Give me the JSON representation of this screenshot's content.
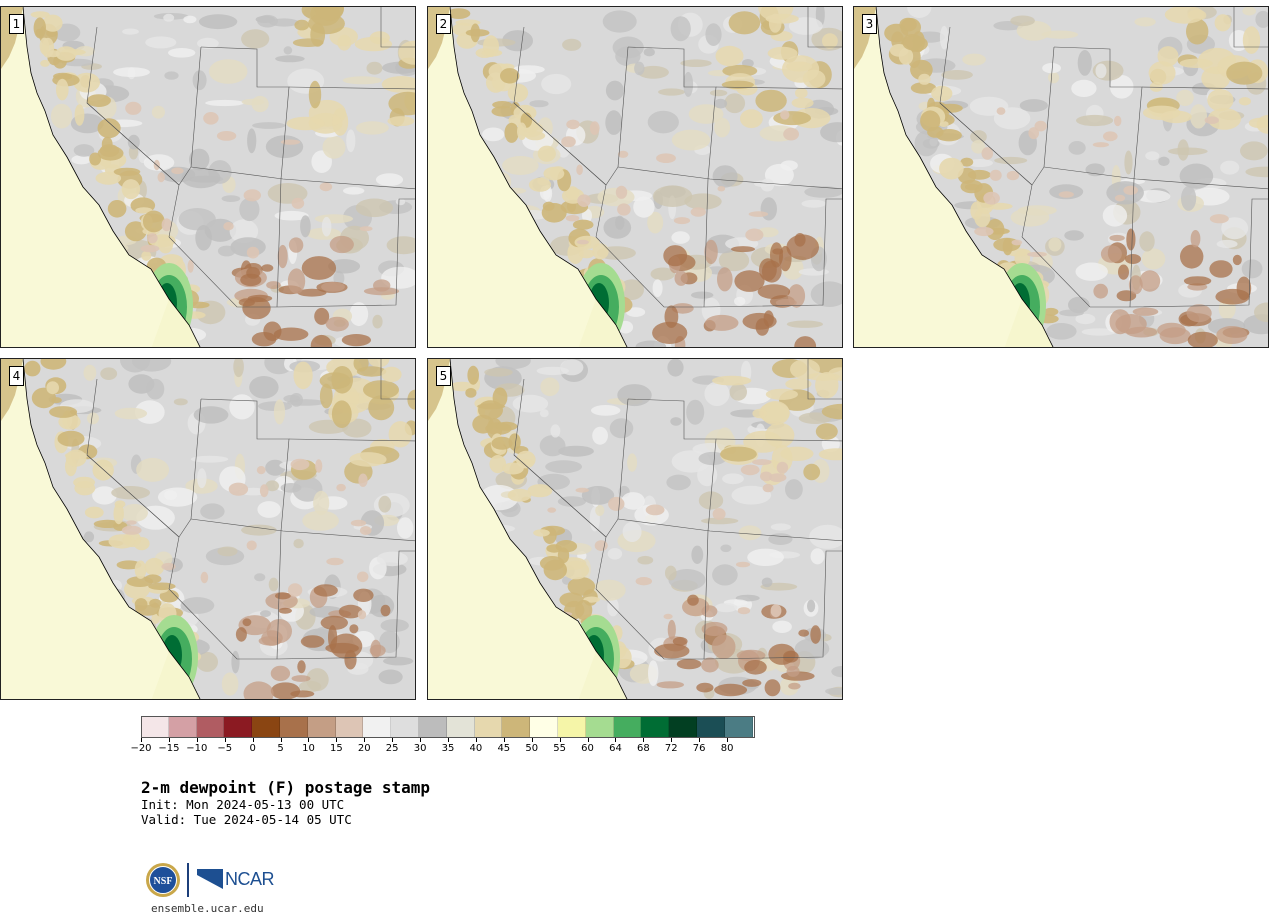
{
  "panels": [
    {
      "label": "1"
    },
    {
      "label": "2"
    },
    {
      "label": "3"
    },
    {
      "label": "4"
    },
    {
      "label": "5"
    }
  ],
  "colorbar": {
    "colors": [
      "#f4e6e8",
      "#d4a0a5",
      "#b05c62",
      "#8b1a22",
      "#8a4512",
      "#a8714b",
      "#c49e85",
      "#ddc5b5",
      "#f1f1f1",
      "#dedede",
      "#bcbcbc",
      "#e3e3d7",
      "#e6d8ae",
      "#cdb679",
      "#ffffe6",
      "#f5f5a8",
      "#a5dc91",
      "#45ad5f",
      "#006d34",
      "#023f22",
      "#1b4e55",
      "#4b7c84"
    ],
    "tick_labels": [
      "−20",
      "−15",
      "−10",
      "−5",
      "0",
      "5",
      "10",
      "15",
      "20",
      "25",
      "30",
      "35",
      "40",
      "45",
      "50",
      "55",
      "60",
      "64",
      "68",
      "72",
      "76",
      "80"
    ]
  },
  "title": "2-m dewpoint (F) postage stamp",
  "init": "Init: Mon 2024-05-13 00 UTC",
  "valid": "Valid: Tue 2024-05-14 05 UTC",
  "logos": {
    "nsf": "NSF",
    "ncar": "NCAR"
  },
  "url": "ensemble.ucar.edu"
}
